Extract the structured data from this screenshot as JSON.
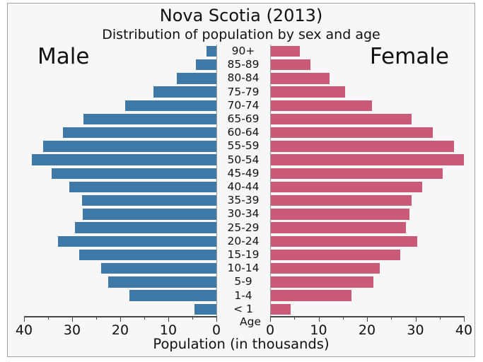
{
  "chart_data": {
    "type": "bar",
    "subtype": "population-pyramid",
    "title": "Nova Scotia (2013)",
    "subtitle": "Distribution of population by sex and age",
    "xlabel": "Population (in thousands)",
    "center_axis_label": "Age",
    "left_series_label": "Male",
    "right_series_label": "Female",
    "age_groups": [
      "90+",
      "85-89",
      "80-84",
      "75-79",
      "70-74",
      "65-69",
      "60-64",
      "55-59",
      "50-54",
      "45-49",
      "40-44",
      "35-39",
      "30-34",
      "25-29",
      "20-24",
      "15-19",
      "10-14",
      "5-9",
      "1-4",
      "< 1"
    ],
    "series": [
      {
        "name": "Male",
        "side": "left",
        "color": "#3e79a8",
        "values": [
          2.1,
          4.3,
          8.3,
          13.1,
          19.0,
          27.6,
          31.9,
          36.1,
          38.4,
          34.3,
          30.6,
          27.9,
          27.8,
          29.4,
          33.0,
          28.6,
          23.9,
          22.5,
          18.1,
          4.5
        ]
      },
      {
        "name": "Female",
        "side": "right",
        "color": "#cb5a78",
        "values": [
          6.1,
          8.3,
          12.2,
          15.5,
          21.0,
          29.2,
          33.6,
          38.0,
          40.0,
          35.6,
          31.4,
          29.2,
          28.7,
          28.0,
          30.4,
          26.9,
          22.7,
          21.3,
          16.8,
          4.3
        ]
      }
    ],
    "xlim": [
      0,
      40
    ],
    "x_major_ticks": [
      0,
      10,
      20,
      30,
      40
    ],
    "x_minor_ticks": [
      5,
      15,
      25,
      35
    ],
    "left_tick_labels": [
      "40",
      "30",
      "20",
      "10",
      "0"
    ],
    "right_tick_labels": [
      "0",
      "10",
      "20",
      "30",
      "40"
    ],
    "grid": false,
    "legend_position": "none",
    "background_color": "#f7f7f7",
    "frame_border_color": "#a3a3a3",
    "axis_color": "#454545"
  }
}
